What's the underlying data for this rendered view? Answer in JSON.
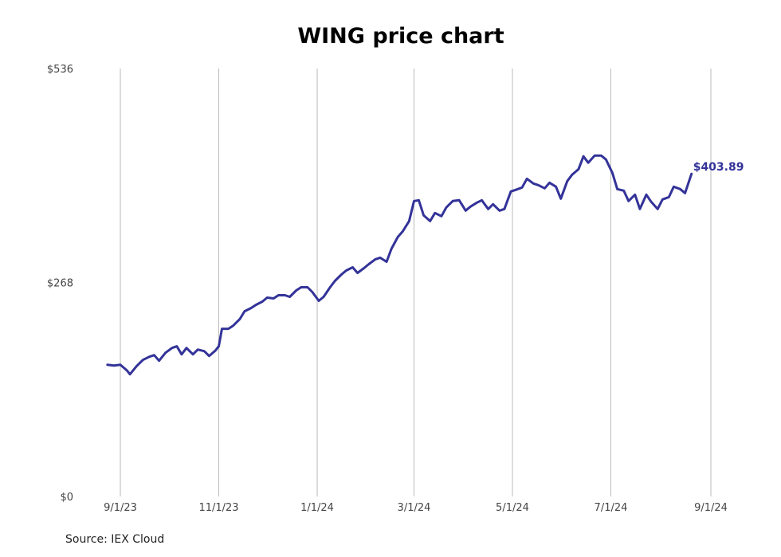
{
  "chart_data": {
    "type": "line",
    "title": "WING price chart",
    "source": "Source: IEX Cloud",
    "xlabel": "",
    "ylabel": "",
    "x_ticks": [
      "9/1/23",
      "11/1/23",
      "1/1/24",
      "3/1/24",
      "5/1/24",
      "7/1/24",
      "9/1/24"
    ],
    "y_ticks": [
      "$0",
      "$268",
      "$536"
    ],
    "ylim": [
      0,
      536
    ],
    "xlim": [
      "2023-08-24",
      "2024-09-01"
    ],
    "grid": "vertical",
    "line_color": "#333399",
    "last_value_label": "$403.89",
    "series": [
      {
        "values": [
          [
            "2023-08-24",
            165
          ],
          [
            "2023-08-28",
            164
          ],
          [
            "2023-09-01",
            165
          ],
          [
            "2023-09-05",
            158
          ],
          [
            "2023-09-07",
            153
          ],
          [
            "2023-09-11",
            163
          ],
          [
            "2023-09-15",
            171
          ],
          [
            "2023-09-19",
            175
          ],
          [
            "2023-09-22",
            177
          ],
          [
            "2023-09-25",
            170
          ],
          [
            "2023-09-29",
            180
          ],
          [
            "2023-10-03",
            186
          ],
          [
            "2023-10-06",
            188
          ],
          [
            "2023-10-09",
            178
          ],
          [
            "2023-10-12",
            186
          ],
          [
            "2023-10-16",
            178
          ],
          [
            "2023-10-19",
            184
          ],
          [
            "2023-10-23",
            182
          ],
          [
            "2023-10-26",
            176
          ],
          [
            "2023-10-30",
            183
          ],
          [
            "2023-11-01",
            188
          ],
          [
            "2023-11-03",
            210
          ],
          [
            "2023-11-07",
            210
          ],
          [
            "2023-11-10",
            214
          ],
          [
            "2023-11-14",
            222
          ],
          [
            "2023-11-17",
            232
          ],
          [
            "2023-11-21",
            236
          ],
          [
            "2023-11-24",
            240
          ],
          [
            "2023-11-28",
            244
          ],
          [
            "2023-12-01",
            249
          ],
          [
            "2023-12-05",
            248
          ],
          [
            "2023-12-08",
            252
          ],
          [
            "2023-12-12",
            252
          ],
          [
            "2023-12-15",
            250
          ],
          [
            "2023-12-19",
            258
          ],
          [
            "2023-12-22",
            262
          ],
          [
            "2023-12-26",
            262
          ],
          [
            "2023-12-29",
            256
          ],
          [
            "2024-01-02",
            245
          ],
          [
            "2024-01-05",
            250
          ],
          [
            "2024-01-09",
            262
          ],
          [
            "2024-01-12",
            270
          ],
          [
            "2024-01-16",
            278
          ],
          [
            "2024-01-19",
            283
          ],
          [
            "2024-01-23",
            287
          ],
          [
            "2024-01-26",
            280
          ],
          [
            "2024-01-30",
            286
          ],
          [
            "2024-02-02",
            291
          ],
          [
            "2024-02-06",
            297
          ],
          [
            "2024-02-09",
            299
          ],
          [
            "2024-02-13",
            294
          ],
          [
            "2024-02-16",
            310
          ],
          [
            "2024-02-20",
            325
          ],
          [
            "2024-02-23",
            332
          ],
          [
            "2024-02-27",
            345
          ],
          [
            "2024-03-01",
            370
          ],
          [
            "2024-03-04",
            371
          ],
          [
            "2024-03-07",
            352
          ],
          [
            "2024-03-11",
            345
          ],
          [
            "2024-03-14",
            355
          ],
          [
            "2024-03-18",
            351
          ],
          [
            "2024-03-21",
            362
          ],
          [
            "2024-03-25",
            370
          ],
          [
            "2024-03-29",
            371
          ],
          [
            "2024-04-02",
            358
          ],
          [
            "2024-04-05",
            363
          ],
          [
            "2024-04-09",
            368
          ],
          [
            "2024-04-12",
            371
          ],
          [
            "2024-04-16",
            360
          ],
          [
            "2024-04-19",
            366
          ],
          [
            "2024-04-23",
            358
          ],
          [
            "2024-04-26",
            360
          ],
          [
            "2024-04-30",
            382
          ],
          [
            "2024-05-03",
            384
          ],
          [
            "2024-05-07",
            387
          ],
          [
            "2024-05-10",
            398
          ],
          [
            "2024-05-14",
            392
          ],
          [
            "2024-05-17",
            390
          ],
          [
            "2024-05-21",
            386
          ],
          [
            "2024-05-24",
            393
          ],
          [
            "2024-05-28",
            388
          ],
          [
            "2024-05-31",
            373
          ],
          [
            "2024-06-04",
            395
          ],
          [
            "2024-06-07",
            403
          ],
          [
            "2024-06-11",
            410
          ],
          [
            "2024-06-14",
            426
          ],
          [
            "2024-06-17",
            418
          ],
          [
            "2024-06-21",
            427
          ],
          [
            "2024-06-25",
            427
          ],
          [
            "2024-06-28",
            422
          ],
          [
            "2024-07-02",
            405
          ],
          [
            "2024-07-05",
            385
          ],
          [
            "2024-07-09",
            383
          ],
          [
            "2024-07-12",
            370
          ],
          [
            "2024-07-16",
            378
          ],
          [
            "2024-07-19",
            360
          ],
          [
            "2024-07-23",
            378
          ],
          [
            "2024-07-26",
            369
          ],
          [
            "2024-07-30",
            360
          ],
          [
            "2024-08-02",
            372
          ],
          [
            "2024-08-06",
            375
          ],
          [
            "2024-08-09",
            388
          ],
          [
            "2024-08-13",
            385
          ],
          [
            "2024-08-16",
            380
          ],
          [
            "2024-08-20",
            404
          ]
        ]
      }
    ]
  }
}
